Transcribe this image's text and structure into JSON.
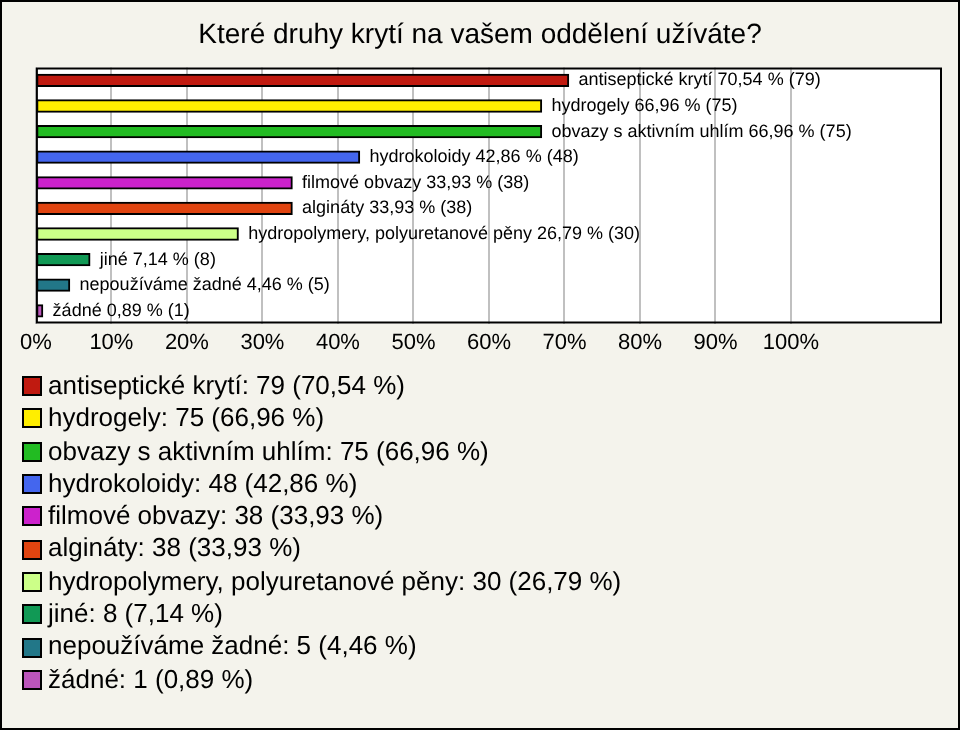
{
  "chart_data": {
    "type": "bar",
    "orientation": "horizontal",
    "title": "Které druhy krytí na vašem oddělení užíváte?",
    "categories": [
      null,
      null,
      null,
      null,
      null,
      null,
      null,
      null,
      null,
      null
    ],
    "xlim": [
      0,
      120
    ],
    "xticks": [
      {
        "value": 0,
        "label": "0%"
      },
      {
        "value": 10,
        "label": "10%"
      },
      {
        "value": 20,
        "label": "20%"
      },
      {
        "value": 30,
        "label": "30%"
      },
      {
        "value": 40,
        "label": "40%"
      },
      {
        "value": 50,
        "label": "50%"
      },
      {
        "value": 60,
        "label": "60%"
      },
      {
        "value": 70,
        "label": "70%"
      },
      {
        "value": 80,
        "label": "80%"
      },
      {
        "value": 90,
        "label": "90%"
      },
      {
        "value": 100,
        "label": "100%"
      }
    ],
    "grid": "x",
    "legend": "bottom",
    "series": [
      {
        "name": "antiseptické krytí: 79 (70,54 %)",
        "color": "#c01a10",
        "values": [
          70.54,
          null,
          null,
          null,
          null,
          null,
          null,
          null,
          null,
          null
        ],
        "value_labels": [
          "antiseptické krytí 70,54 % (79)",
          null,
          null,
          null,
          null,
          null,
          null,
          null,
          null,
          null
        ]
      },
      {
        "name": "hydrogely: 75 (66,96 %)",
        "color": "#ffee00",
        "values": [
          null,
          66.96,
          null,
          null,
          null,
          null,
          null,
          null,
          null,
          null
        ],
        "value_labels": [
          null,
          "hydrogely 66,96 % (75)",
          null,
          null,
          null,
          null,
          null,
          null,
          null,
          null
        ]
      },
      {
        "name": "obvazy s aktivním uhlím: 75 (66,96 %)",
        "color": "#22bb22",
        "values": [
          null,
          null,
          66.96,
          null,
          null,
          null,
          null,
          null,
          null,
          null
        ],
        "value_labels": [
          null,
          null,
          "obvazy s aktivním uhlím 66,96 % (75)",
          null,
          null,
          null,
          null,
          null,
          null,
          null
        ]
      },
      {
        "name": "hydrokoloidy: 48 (42,86 %)",
        "color": "#4466ee",
        "values": [
          null,
          null,
          null,
          42.86,
          null,
          null,
          null,
          null,
          null,
          null
        ],
        "value_labels": [
          null,
          null,
          null,
          "hydrokoloidy 42,86 % (48)",
          null,
          null,
          null,
          null,
          null,
          null
        ]
      },
      {
        "name": "filmové obvazy: 38 (33,93 %)",
        "color": "#cc22cc",
        "values": [
          null,
          null,
          null,
          null,
          33.93,
          null,
          null,
          null,
          null,
          null
        ],
        "value_labels": [
          null,
          null,
          null,
          null,
          "filmové obvazy 33,93 % (38)",
          null,
          null,
          null,
          null,
          null
        ]
      },
      {
        "name": "algináty: 38 (33,93 %)",
        "color": "#e04410",
        "values": [
          null,
          null,
          null,
          null,
          null,
          33.93,
          null,
          null,
          null,
          null
        ],
        "value_labels": [
          null,
          null,
          null,
          null,
          null,
          "algináty 33,93 % (38)",
          null,
          null,
          null,
          null
        ]
      },
      {
        "name": "hydropolymery, polyuretanové pěny: 30 (26,79 %)",
        "color": "#ccff88",
        "values": [
          null,
          null,
          null,
          null,
          null,
          null,
          26.79,
          null,
          null,
          null
        ],
        "value_labels": [
          null,
          null,
          null,
          null,
          null,
          null,
          "hydropolymery, polyuretanové pěny 26,79 % (30)",
          null,
          null,
          null
        ]
      },
      {
        "name": "jiné: 8 (7,14 %)",
        "color": "#119955",
        "values": [
          null,
          null,
          null,
          null,
          null,
          null,
          null,
          7.14,
          null,
          null
        ],
        "value_labels": [
          null,
          null,
          null,
          null,
          null,
          null,
          null,
          "jiné 7,14 % (8)",
          null,
          null
        ]
      },
      {
        "name": "nepoužíváme žadné: 5 (4,46 %)",
        "color": "#227788",
        "values": [
          null,
          null,
          null,
          null,
          null,
          null,
          null,
          null,
          4.46,
          null
        ],
        "value_labels": [
          null,
          null,
          null,
          null,
          null,
          null,
          null,
          null,
          "nepoužíváme žadné 4,46 % (5)",
          null
        ]
      },
      {
        "name": "žádné: 1 (0,89 %)",
        "color": "#bb55bb",
        "values": [
          null,
          null,
          null,
          null,
          null,
          null,
          null,
          null,
          null,
          0.89
        ],
        "value_labels": [
          null,
          null,
          null,
          null,
          null,
          null,
          null,
          null,
          null,
          "žádné 0,89 % (1)"
        ]
      }
    ]
  }
}
